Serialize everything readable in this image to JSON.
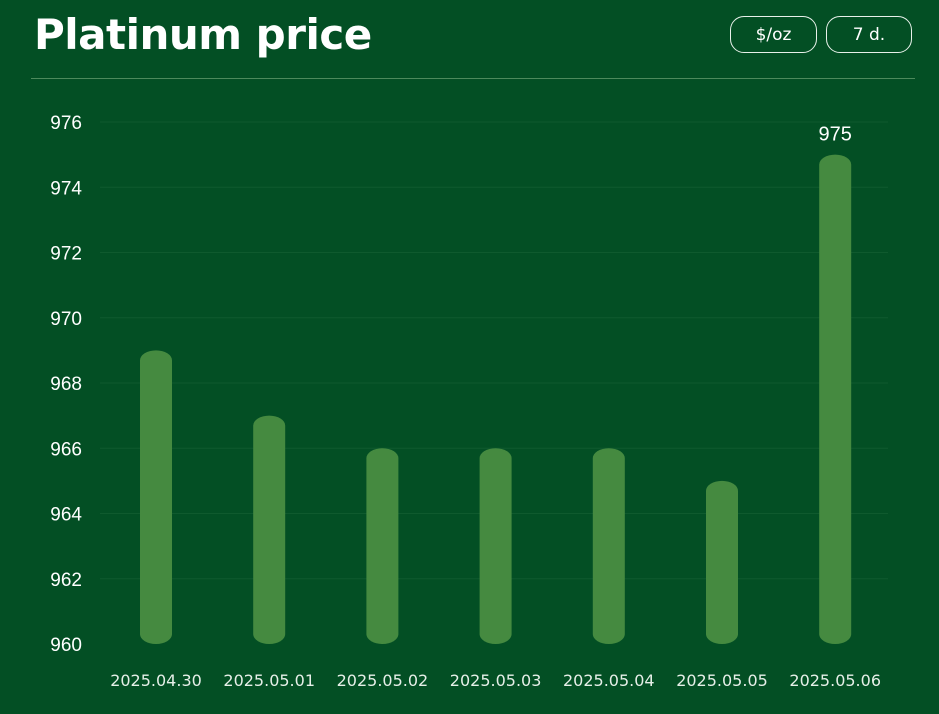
{
  "header": {
    "title": "Platinum price",
    "unit_button": "$/oz",
    "range_button": "7 d."
  },
  "colors": {
    "background": "#034f24",
    "bar": "#458a40",
    "text": "#ffffff"
  },
  "chart_data": {
    "type": "bar",
    "title": "Platinum price",
    "xlabel": "",
    "ylabel": "",
    "categories": [
      "2025.04.30",
      "2025.05.01",
      "2025.05.02",
      "2025.05.03",
      "2025.05.04",
      "2025.05.05",
      "2025.05.06"
    ],
    "values": [
      969,
      967,
      966,
      966,
      966,
      965,
      975
    ],
    "ylim": [
      960,
      976
    ],
    "yticks": [
      960,
      962,
      964,
      966,
      968,
      970,
      972,
      974,
      976
    ],
    "data_labels": [
      {
        "category": "2025.05.06",
        "text": "975"
      }
    ],
    "grid": true,
    "legend": "none"
  }
}
